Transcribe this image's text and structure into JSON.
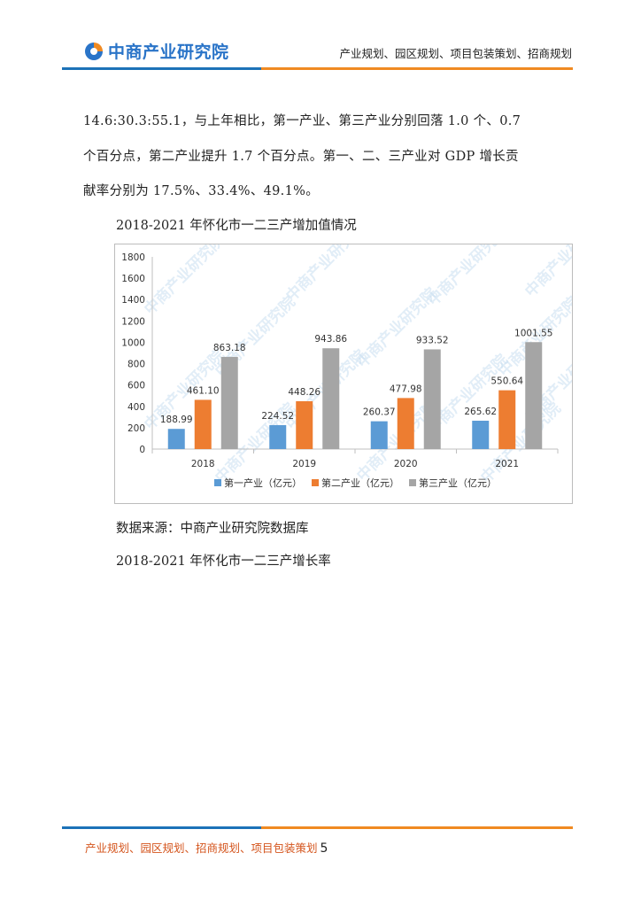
{
  "header": {
    "logo_text": "中商产业研究院",
    "tagline": "产业规划、园区规划、项目包装策划、招商规划"
  },
  "body": {
    "para_line1": "14.6:30.3:55.1，与上年相比，第一产业、第三产业分别回落 1.0 个、0.7",
    "para_line2": "个百分点，第二产业提升 1.7 个百分点。第一、二、三产业对 GDP 增长贡",
    "para_line3": "献率分别为 17.5%、33.4%、49.1%。",
    "chart_caption": "2018-2021 年怀化市一二三产增加值情况",
    "source": "数据来源：中商产业研究院数据库",
    "next_caption": "2018-2021 年怀化市一二三产增长率"
  },
  "watermark_text": "中商产业研究院",
  "chart_data": {
    "type": "bar",
    "categories": [
      "2018",
      "2019",
      "2020",
      "2021"
    ],
    "series": [
      {
        "name": "第一产业（亿元）",
        "values": [
          188.99,
          224.52,
          260.37,
          265.62
        ],
        "color": "#5b9bd5"
      },
      {
        "name": "第二产业（亿元）",
        "values": [
          461.1,
          448.26,
          477.98,
          550.64
        ],
        "color": "#ed7d31"
      },
      {
        "name": "第三产业（亿元）",
        "values": [
          863.18,
          943.86,
          933.52,
          1001.55
        ],
        "color": "#a5a5a5"
      }
    ],
    "data_labels": [
      [
        "188.99",
        "224.52",
        "260.37",
        "265.62"
      ],
      [
        "461.10",
        "448.26",
        "477.98",
        "550.64"
      ],
      [
        "863.18",
        "943.86",
        "933.52",
        "1001.55"
      ]
    ],
    "ylim": [
      0,
      1800
    ],
    "yticks": [
      0,
      200,
      400,
      600,
      800,
      1000,
      1200,
      1400,
      1600,
      1800
    ],
    "legend_position": "bottom",
    "grid": false
  },
  "footer": {
    "text": "产业规划、园区规划、招商规划、项目包装策划",
    "page_number": "5"
  }
}
